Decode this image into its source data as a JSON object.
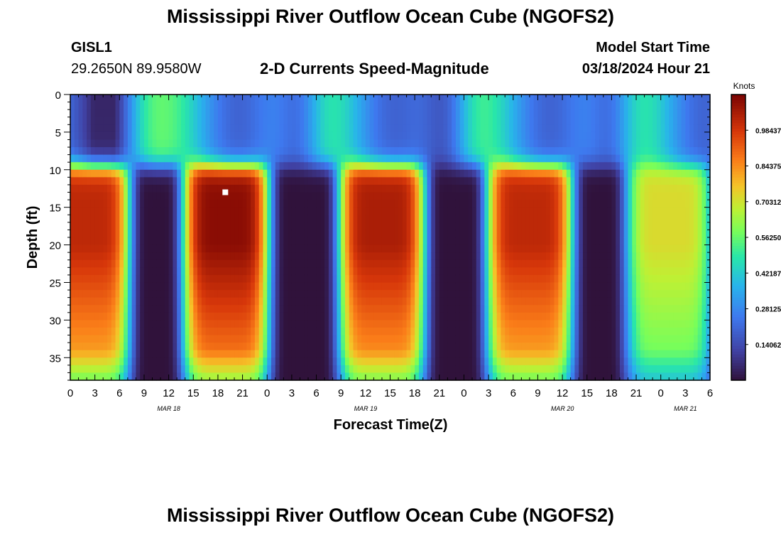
{
  "header": {
    "title": "Mississippi River Outflow Ocean Cube (NGOFS2)",
    "station": "GISL1",
    "coords": "29.2650N  89.9580W",
    "subtitle": "2-D Currents Speed-Magnitude",
    "model_start_label": "Model Start Time",
    "model_start_value": "03/18/2024 Hour 21",
    "footer_title": "Mississippi River Outflow Ocean Cube (NGOFS2)"
  },
  "chart_data": {
    "type": "heatmap",
    "title": "2-D Currents Speed-Magnitude",
    "xlabel": "Forecast Time(Z)",
    "ylabel": "Depth (ft)",
    "x_ticks": [
      "0",
      "3",
      "6",
      "9",
      "12",
      "15",
      "18",
      "21",
      "0",
      "3",
      "6",
      "9",
      "12",
      "15",
      "18",
      "21",
      "0",
      "3",
      "6",
      "9",
      "12",
      "15",
      "18",
      "21",
      "0",
      "3",
      "6"
    ],
    "x_range_hours": [
      0,
      78
    ],
    "date_labels": [
      {
        "label": "MAR 18",
        "hour": 12
      },
      {
        "label": "MAR 19",
        "hour": 36
      },
      {
        "label": "MAR 20",
        "hour": 60
      },
      {
        "label": "MAR 21",
        "hour": 75
      }
    ],
    "y_ticks": [
      "0",
      "5",
      "10",
      "15",
      "20",
      "25",
      "30",
      "35"
    ],
    "y_range_ft": [
      0,
      38
    ],
    "colorbar": {
      "unit": "Knots",
      "labels": [
        "0.98437",
        "0.84375",
        "0.70312",
        "0.56250",
        "0.42187",
        "0.28125",
        "0.14062"
      ],
      "range": [
        0,
        1.125
      ]
    },
    "peak_marker": {
      "hour": 18.9,
      "depth_ft": 13
    },
    "peaks": [
      {
        "hour": 2,
        "speed": 1.02
      },
      {
        "hour": 19,
        "speed": 1.1
      },
      {
        "hour": 38,
        "speed": 1.05
      },
      {
        "hour": 56,
        "speed": 1.02
      },
      {
        "hour": 73,
        "speed": 0.72
      }
    ]
  }
}
